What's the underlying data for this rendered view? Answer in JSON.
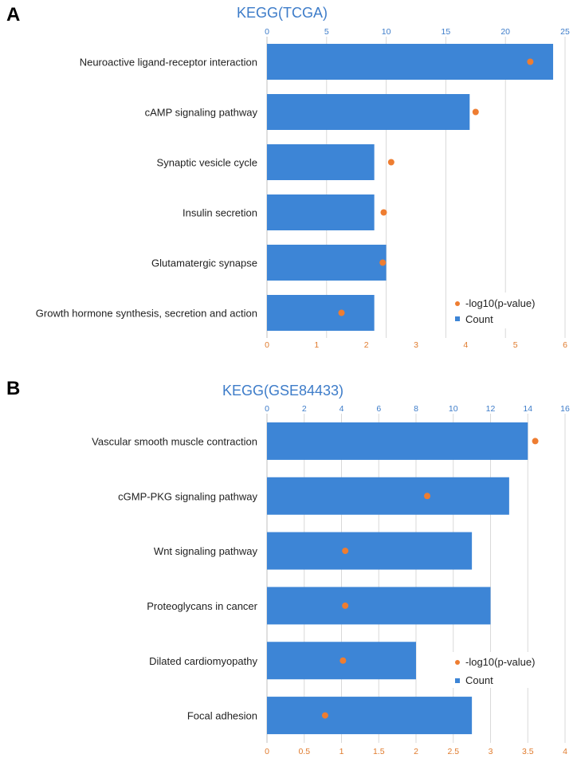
{
  "chart_data": [
    {
      "type": "bar",
      "panel_label": "A",
      "title": "KEGG(TCGA)",
      "categories": [
        "Neuroactive ligand-receptor interaction",
        "cAMP signaling pathway",
        "Synaptic vesicle cycle",
        "Insulin secretion",
        "Glutamatergic synapse",
        "Growth hormone synthesis, secretion and action"
      ],
      "series": [
        {
          "name": "Count",
          "kind": "bar",
          "axis": "top",
          "color": "#3d85d6",
          "values": [
            24,
            17,
            9,
            9,
            10,
            9
          ]
        },
        {
          "name": "-log10(p-value)",
          "kind": "scatter",
          "axis": "bottom",
          "color": "#ee7d31",
          "values": [
            5.3,
            4.2,
            2.5,
            2.35,
            2.33,
            1.5
          ]
        }
      ],
      "top_axis": {
        "range": [
          0,
          25
        ],
        "ticks": [
          "0",
          "5",
          "10",
          "15",
          "20",
          "25"
        ]
      },
      "bottom_axis": {
        "range": [
          0,
          6
        ],
        "ticks": [
          "0",
          "1",
          "2",
          "3",
          "4",
          "5",
          "6"
        ]
      },
      "grid": true,
      "legend_position": "bottom-right"
    },
    {
      "type": "bar",
      "panel_label": "B",
      "title": "KEGG(GSE84433)",
      "categories": [
        "Vascular smooth muscle contraction",
        "cGMP-PKG signaling pathway",
        "Wnt signaling pathway",
        "Proteoglycans in cancer",
        "Dilated cardiomyopathy",
        "Focal adhesion"
      ],
      "series": [
        {
          "name": "Count",
          "kind": "bar",
          "axis": "top",
          "color": "#3d85d6",
          "values": [
            14,
            13,
            11,
            12,
            8,
            11
          ]
        },
        {
          "name": "-log10(p-value)",
          "kind": "scatter",
          "axis": "bottom",
          "color": "#ee7d31",
          "values": [
            3.6,
            2.15,
            1.05,
            1.05,
            1.02,
            0.78
          ]
        }
      ],
      "top_axis": {
        "range": [
          0,
          16
        ],
        "ticks": [
          "0",
          "2",
          "4",
          "6",
          "8",
          "10",
          "12",
          "14",
          "16"
        ]
      },
      "bottom_axis": {
        "range": [
          0,
          4
        ],
        "ticks": [
          "0",
          "0.5",
          "1",
          "1.5",
          "2",
          "2.5",
          "3",
          "3.5",
          "4"
        ]
      },
      "grid": true,
      "legend_position": "bottom-right"
    }
  ]
}
